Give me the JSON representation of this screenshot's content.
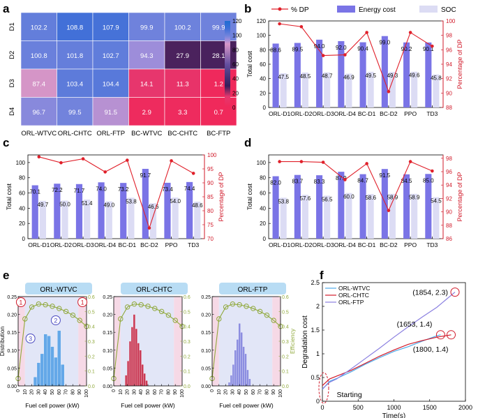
{
  "chart_data": [
    {
      "panel": "a",
      "type": "heatmap",
      "rows": [
        "D1",
        "D2",
        "D3",
        "D4"
      ],
      "columns": [
        "ORL-WTVC",
        "ORL-CHTC",
        "ORL-FTP",
        "BC-WTVC",
        "BC-CHTC",
        "BC-FTP"
      ],
      "values": [
        [
          102.2,
          108.8,
          107.9,
          99.9,
          100.2,
          99.9
        ],
        [
          100.8,
          101.8,
          102.7,
          94.3,
          27.9,
          28.1
        ],
        [
          87.4,
          103.4,
          104.4,
          14.1,
          11.3,
          1.2
        ],
        [
          96.7,
          99.5,
          91.5,
          2.9,
          3.3,
          0.7
        ]
      ],
      "colorbar_ticks": [
        0,
        20,
        40,
        60,
        80,
        100,
        120
      ],
      "colorbar_range": [
        0,
        120
      ]
    },
    {
      "panel": "b",
      "type": "bar",
      "categories": [
        "ORL-D1",
        "ORL-D2",
        "ORL-D3",
        "ORL-D4",
        "BC-D1",
        "BC-D2",
        "PPO",
        "TD3"
      ],
      "series": [
        {
          "name": "Energy cost",
          "values": [
            88.6,
            89.5,
            94.0,
            92.0,
            90.4,
            99.0,
            90.2,
            90.1
          ]
        },
        {
          "name": "SOC",
          "values": [
            47.5,
            48.5,
            48.7,
            46.9,
            49.5,
            49.3,
            49.6,
            45.8
          ]
        }
      ],
      "line": {
        "name": "% DP",
        "values": [
          99.6,
          99.2,
          95.2,
          95.3,
          98.4,
          90.2,
          98.4,
          96.5
        ]
      },
      "legend": [
        "% DP",
        "Energy cost",
        "SOC"
      ],
      "ylabel": "Total cost",
      "ylim": [
        0,
        120
      ],
      "yticks": [
        0,
        20,
        40,
        60,
        80,
        100,
        120
      ],
      "y2label": "Percentage of DP",
      "y2lim": [
        88,
        100
      ],
      "y2ticks": [
        88,
        90,
        92,
        94,
        96,
        98,
        100
      ]
    },
    {
      "panel": "c",
      "type": "bar",
      "categories": [
        "ORL-D1",
        "ORL-D2",
        "ORL-D3",
        "ORL-D4",
        "BC-D1",
        "BC-D2",
        "PPO",
        "TD3"
      ],
      "series": [
        {
          "name": "Energy cost",
          "values": [
            70.1,
            72.2,
            71.7,
            74.0,
            73.2,
            91.7,
            73.4,
            74.4
          ]
        },
        {
          "name": "SOC",
          "values": [
            49.7,
            50.0,
            51.4,
            49.0,
            53.8,
            46.6,
            54.0,
            48.6
          ]
        }
      ],
      "line": {
        "name": "% DP",
        "values": [
          99.3,
          97.2,
          98.6,
          93.9,
          98.1,
          73.8,
          97.9,
          93.4
        ]
      },
      "ylabel": "Total cost",
      "ylim": [
        0,
        110
      ],
      "yticks": [
        0,
        20,
        40,
        60,
        80,
        100
      ],
      "y2label": "Percentage of DP",
      "y2lim": [
        70,
        100
      ],
      "y2ticks": [
        70,
        75,
        80,
        85,
        90,
        95,
        100
      ]
    },
    {
      "panel": "d",
      "type": "bar",
      "categories": [
        "ORL-D1",
        "ORL-D2",
        "ORL-D3",
        "ORL-D4",
        "BC-D1",
        "BC-D2",
        "PPO",
        "TD3"
      ],
      "series": [
        {
          "name": "Energy cost",
          "values": [
            82.0,
            83.7,
            83.3,
            87.9,
            84.7,
            91.5,
            84.5,
            85.0
          ]
        },
        {
          "name": "SOC",
          "values": [
            53.8,
            57.6,
            56.5,
            60.0,
            58.6,
            58.9,
            58.9,
            54.5
          ]
        }
      ],
      "line": {
        "name": "% DP",
        "values": [
          97.5,
          97.5,
          97.4,
          94.8,
          97.2,
          90.2,
          97.5,
          96.1
        ]
      },
      "ylabel": "Total cost",
      "ylim": [
        0,
        110
      ],
      "yticks": [
        0,
        20,
        40,
        60,
        80,
        100
      ],
      "y2label": "Percentage of DP",
      "y2lim": [
        86,
        98.5
      ],
      "y2ticks": [
        86,
        88,
        90,
        92,
        94,
        96,
        98
      ]
    },
    {
      "panel": "e",
      "type": "bar",
      "subplots": [
        {
          "title": "ORL-WTVC",
          "hist_color": "#64a8e8",
          "bins_x": [
            25,
            30,
            35,
            40,
            45,
            50,
            55,
            60,
            65
          ],
          "bins_y": [
            0.025,
            0.065,
            0.09,
            0.145,
            0.14,
            0.11,
            0.08,
            0.155,
            0.06
          ],
          "annotations": [
            "1",
            "2",
            "3",
            "1"
          ]
        },
        {
          "title": "ORL-CHTC",
          "hist_color": "#c93a55",
          "bins_x": [
            18,
            21,
            24,
            27,
            30,
            33,
            36,
            39,
            42,
            45,
            48
          ],
          "bins_y": [
            0.03,
            0.07,
            0.125,
            0.165,
            0.2,
            0.16,
            0.12,
            0.1,
            0.06,
            0.035,
            0.015
          ],
          "annotations": []
        },
        {
          "title": "ORL-FTP",
          "hist_color": "#8b8de0",
          "bins_x": [
            25,
            28,
            31,
            34,
            37,
            40,
            43,
            46,
            49,
            52,
            55
          ],
          "bins_y": [
            0.01,
            0.03,
            0.06,
            0.1,
            0.13,
            0.175,
            0.15,
            0.11,
            0.09,
            0.045,
            0.02
          ],
          "annotations": []
        }
      ],
      "efficiency_curve": {
        "x": [
          0,
          10,
          20,
          30,
          40,
          50,
          60,
          70,
          80,
          90,
          100
        ],
        "y": [
          0.05,
          0.45,
          0.53,
          0.55,
          0.545,
          0.535,
          0.52,
          0.5,
          0.475,
          0.44,
          0.4
        ]
      },
      "xlabel": "Fuel cell power (kW)",
      "xticks": [
        0,
        10,
        20,
        30,
        40,
        50,
        60,
        70,
        80,
        90,
        100
      ],
      "ylabel": "Distribution",
      "ylim": [
        0,
        0.25
      ],
      "yticks": [
        0.0,
        0.05,
        0.1,
        0.15,
        0.2,
        0.25
      ],
      "y2label": "Efficiency",
      "y2ticks": [
        0.0,
        0.1,
        0.2,
        0.3,
        0.4,
        0.5,
        0.6
      ]
    },
    {
      "panel": "f",
      "type": "line",
      "series": [
        {
          "name": "ORL-WTVC",
          "color": "#4fa9e8",
          "x": [
            0,
            100,
            200,
            400,
            600,
            800,
            1000,
            1200,
            1400,
            1600,
            1653
          ],
          "y": [
            0.25,
            0.42,
            0.48,
            0.62,
            0.78,
            0.92,
            1.05,
            1.15,
            1.27,
            1.38,
            1.4
          ]
        },
        {
          "name": "ORL-CHTC",
          "color": "#d11a2a",
          "x": [
            0,
            100,
            200,
            400,
            600,
            800,
            1000,
            1200,
            1400,
            1600,
            1800
          ],
          "y": [
            0.33,
            0.47,
            0.53,
            0.65,
            0.8,
            0.95,
            1.08,
            1.2,
            1.28,
            1.35,
            1.4
          ]
        },
        {
          "name": "ORL-FTP",
          "color": "#8a7fe0",
          "x": [
            0,
            100,
            200,
            400,
            600,
            800,
            1000,
            1200,
            1400,
            1600,
            1854
          ],
          "y": [
            0.26,
            0.4,
            0.47,
            0.68,
            0.9,
            1.12,
            1.35,
            1.57,
            1.78,
            1.98,
            2.3
          ]
        }
      ],
      "annotations": [
        "(1854, 2.3)",
        "(1653, 1.4)",
        "(1800, 1.4)",
        "Starting"
      ],
      "xlabel": "Time(s)",
      "ylabel": "Degradation cost",
      "xlim": [
        0,
        2000
      ],
      "ylim": [
        0,
        2.5
      ],
      "xticks": [
        0,
        500,
        1000,
        1500,
        2000
      ],
      "yticks": [
        0,
        0.5,
        1,
        1.5,
        2,
        2.5
      ]
    }
  ]
}
